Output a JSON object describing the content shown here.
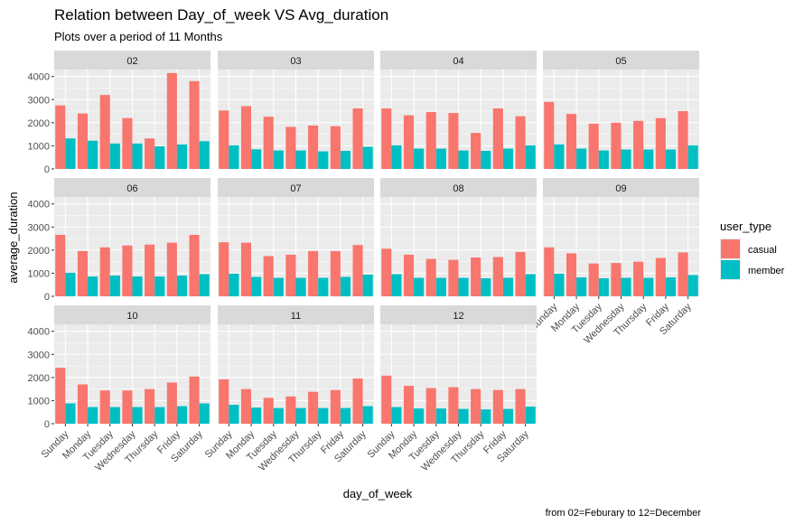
{
  "chart_data": {
    "type": "bar",
    "title": "Relation between Day_of_week VS Avg_duration",
    "subtitle": "Plots over a period of 11 Months",
    "xlabel": "day_of_week",
    "ylabel": "average_duration",
    "caption": "from 02=Feburary to 12=December",
    "categories": [
      "Sunday",
      "Monday",
      "Tuesday",
      "Wednesday",
      "Thursday",
      "Friday",
      "Saturday"
    ],
    "yticks": [
      0,
      1000,
      2000,
      3000,
      4000
    ],
    "ylim": [
      0,
      4300
    ],
    "legend": {
      "title": "user_type",
      "position": "right"
    },
    "colors": {
      "casual": "#F8766D",
      "member": "#00BFC4",
      "panel": "#EBEBEB",
      "strip": "#D9D9D9",
      "grid": "#FFFFFF"
    },
    "facets": [
      {
        "label": "02",
        "series": [
          {
            "name": "casual",
            "values": [
              2750,
              2400,
              3200,
              2200,
              1320,
              4150,
              3800
            ]
          },
          {
            "name": "member",
            "values": [
              1320,
              1220,
              1100,
              1100,
              980,
              1060,
              1200
            ]
          }
        ]
      },
      {
        "label": "03",
        "series": [
          {
            "name": "casual",
            "values": [
              2530,
              2720,
              2260,
              1820,
              1880,
              1850,
              2620
            ]
          },
          {
            "name": "member",
            "values": [
              1020,
              850,
              800,
              800,
              760,
              780,
              960
            ]
          }
        ]
      },
      {
        "label": "04",
        "series": [
          {
            "name": "casual",
            "values": [
              2620,
              2320,
              2460,
              2420,
              1560,
              2620,
              2280
            ]
          },
          {
            "name": "member",
            "values": [
              1020,
              880,
              880,
              800,
              780,
              880,
              1020
            ]
          }
        ]
      },
      {
        "label": "05",
        "series": [
          {
            "name": "casual",
            "values": [
              2900,
              2380,
              1960,
              2000,
              2080,
              2200,
              2500
            ]
          },
          {
            "name": "member",
            "values": [
              1060,
              880,
              800,
              840,
              840,
              840,
              1020
            ]
          }
        ]
      },
      {
        "label": "06",
        "series": [
          {
            "name": "casual",
            "values": [
              2660,
              1960,
              2120,
              2200,
              2240,
              2320,
              2660
            ]
          },
          {
            "name": "member",
            "values": [
              1020,
              860,
              900,
              860,
              860,
              900,
              960
            ]
          }
        ]
      },
      {
        "label": "07",
        "series": [
          {
            "name": "casual",
            "values": [
              2340,
              2320,
              1740,
              1800,
              1960,
              1960,
              2220
            ]
          },
          {
            "name": "member",
            "values": [
              980,
              840,
              800,
              800,
              800,
              840,
              940
            ]
          }
        ]
      },
      {
        "label": "08",
        "series": [
          {
            "name": "casual",
            "values": [
              2060,
              1800,
              1620,
              1580,
              1680,
              1700,
              1920
            ]
          },
          {
            "name": "member",
            "values": [
              960,
              800,
              800,
              800,
              780,
              800,
              960
            ]
          }
        ]
      },
      {
        "label": "09",
        "series": [
          {
            "name": "casual",
            "values": [
              2120,
              1860,
              1420,
              1440,
              1500,
              1660,
              1900
            ]
          },
          {
            "name": "member",
            "values": [
              980,
              820,
              780,
              800,
              800,
              820,
              920
            ]
          }
        ]
      },
      {
        "label": "10",
        "series": [
          {
            "name": "casual",
            "values": [
              2420,
              1700,
              1440,
              1440,
              1500,
              1780,
              2040
            ]
          },
          {
            "name": "member",
            "values": [
              880,
              720,
              720,
              720,
              720,
              760,
              880
            ]
          }
        ]
      },
      {
        "label": "11",
        "series": [
          {
            "name": "casual",
            "values": [
              1920,
              1500,
              1120,
              1180,
              1380,
              1460,
              1960
            ]
          },
          {
            "name": "member",
            "values": [
              820,
              700,
              680,
              680,
              680,
              680,
              760
            ]
          }
        ]
      },
      {
        "label": "12",
        "series": [
          {
            "name": "casual",
            "values": [
              2080,
              1640,
              1540,
              1580,
              1500,
              1460,
              1500
            ]
          },
          {
            "name": "member",
            "values": [
              720,
              660,
              660,
              640,
              620,
              640,
              740
            ]
          }
        ]
      }
    ]
  }
}
